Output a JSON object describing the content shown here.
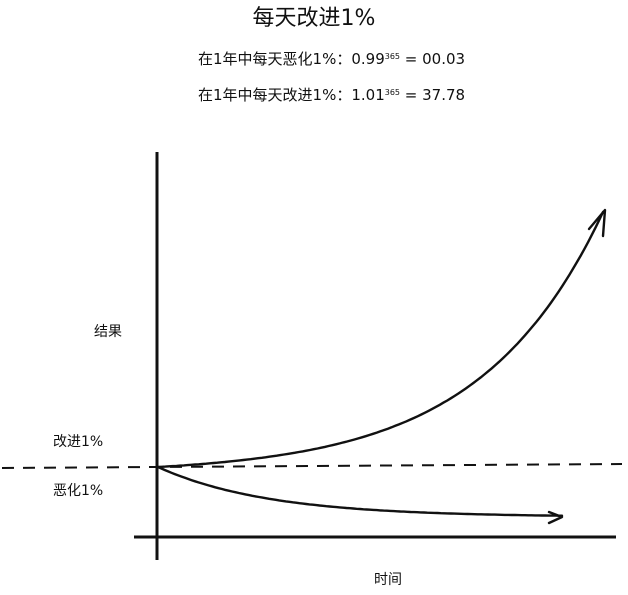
{
  "chart_data": {
    "type": "line",
    "title": "每天改进1%",
    "formulas": [
      {
        "prefix": "在1年中每天恶化1%：0.99",
        "exponent": "365",
        "suffix": " = 00.03"
      },
      {
        "prefix": "在1年中每天改进1%：1.01",
        "exponent": "365",
        "suffix": " = 37.78"
      }
    ],
    "xlabel": "时间",
    "ylabel": "结果",
    "baseline_labels": {
      "above": "改进1%",
      "below": "恶化1%"
    },
    "days": 365,
    "series": [
      {
        "name": "改进1%",
        "daily_factor": 1.01
      },
      {
        "name": "恶化1%",
        "daily_factor": 0.99
      }
    ],
    "grid": false,
    "colors": {
      "ink": "#111111"
    }
  }
}
